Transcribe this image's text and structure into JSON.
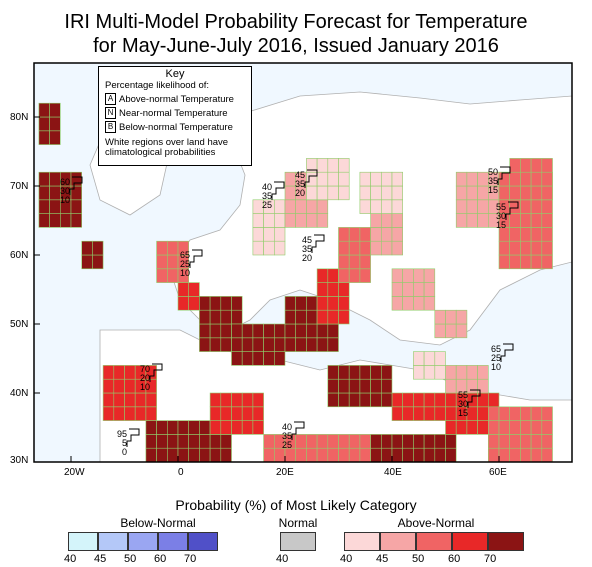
{
  "title": {
    "line1": "IRI Multi-Model Probability Forecast for Temperature",
    "line2": "for May-June-July 2016, Issued January 2016"
  },
  "map": {
    "lat_labels": [
      "80N",
      "70N",
      "60N",
      "50N",
      "40N",
      "30N"
    ],
    "lon_labels": [
      "20W",
      "0",
      "20E",
      "40E",
      "60E"
    ],
    "ocean_color": "#f0f8ff",
    "land_color": "#ffffff",
    "cell_outline_color": "#8fce6a",
    "region_markers": [
      {
        "label": "A-N 60/30/10 (Norwegian Sea)",
        "above": 60,
        "normal": 30,
        "below": 10
      },
      {
        "label": "A-N 45/35/20 (Scandinavia)",
        "above": 45,
        "normal": 35,
        "below": 20
      },
      {
        "label": "A-N 40/35/25 (Scandinavia)",
        "above": 40,
        "normal": 35,
        "below": 25
      },
      {
        "label": "A-N 50/35/15 (Siberia)",
        "above": 50,
        "normal": 35,
        "below": 15
      },
      {
        "label": "A-N 55/30/15 (Siberia)",
        "above": 55,
        "normal": 30,
        "below": 15
      },
      {
        "label": "A-N 45/35/20 (Russia)",
        "above": 45,
        "normal": 35,
        "below": 20
      },
      {
        "label": "A-N 65/25/10 (Central Europe)",
        "above": 65,
        "normal": 25,
        "below": 10
      },
      {
        "label": "A-N 70/20/10 (Mediterranean)",
        "above": 70,
        "normal": 20,
        "below": 10
      },
      {
        "label": "A-N 95/5/0 (Sahara)",
        "above": 95,
        "normal": 5,
        "below": 0
      },
      {
        "label": "A-N 40/35/25 (Arabia)",
        "above": 40,
        "normal": 35,
        "below": 25
      },
      {
        "label": "A-N 55/30/15 (Middle East)",
        "above": 55,
        "normal": 30,
        "below": 15
      },
      {
        "label": "A-N 65/25/10 (Iran)",
        "above": 65,
        "normal": 25,
        "below": 10
      }
    ]
  },
  "key": {
    "title": "Key",
    "subtitle": "Percentage likelihood of:",
    "rows": [
      {
        "letter": "A",
        "text": "Above-normal Temperature"
      },
      {
        "letter": "N",
        "text": "Near-normal Temperature"
      },
      {
        "letter": "B",
        "text": "Below-normal Temperature"
      }
    ],
    "note_line1": "White regions over land have",
    "note_line2": "climatological probabilities"
  },
  "legend": {
    "title": "Probability (%) of Most Likely Category",
    "below": {
      "label": "Below-Normal",
      "ticks": [
        "40",
        "45",
        "50",
        "60",
        "70"
      ],
      "colors": [
        "#d4f4fa",
        "#b4c8f8",
        "#9aa6f2",
        "#7b7fe6",
        "#5050c8"
      ]
    },
    "normal": {
      "label": "Normal",
      "ticks": [
        "40"
      ],
      "colors": [
        "#c8c8c8"
      ]
    },
    "above": {
      "label": "Above-Normal",
      "ticks": [
        "40",
        "45",
        "50",
        "60",
        "70"
      ],
      "colors": [
        "#fcd8d8",
        "#f6a6a6",
        "#f06464",
        "#e82828",
        "#8b1414"
      ]
    }
  }
}
